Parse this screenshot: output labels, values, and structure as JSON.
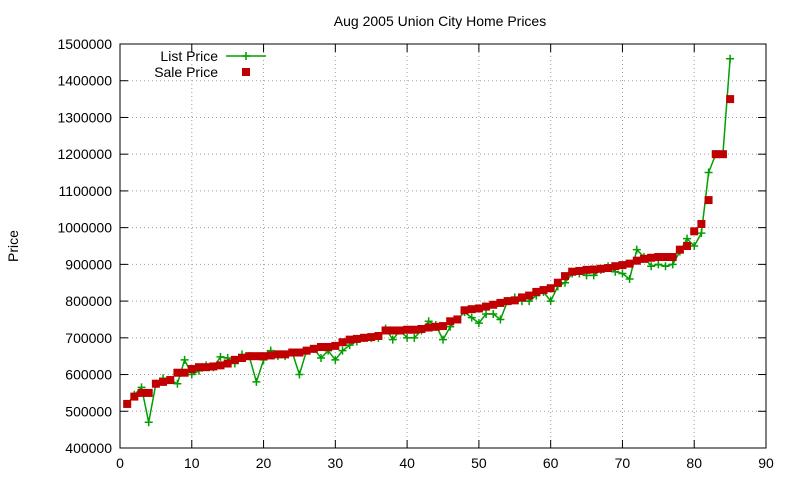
{
  "chart_data": {
    "type": "line",
    "title": "Aug 2005 Union City Home Prices",
    "xlabel": "",
    "ylabel": "Price",
    "xlim": [
      0,
      90
    ],
    "ylim": [
      400000,
      1500000
    ],
    "x_ticks": [
      0,
      10,
      20,
      30,
      40,
      50,
      60,
      70,
      80,
      90
    ],
    "y_ticks": [
      400000,
      500000,
      600000,
      700000,
      800000,
      900000,
      1000000,
      1100000,
      1200000,
      1300000,
      1400000,
      1500000
    ],
    "grid": true,
    "legend_position": "top-left",
    "x": [
      1,
      2,
      3,
      4,
      5,
      6,
      7,
      8,
      9,
      10,
      11,
      12,
      13,
      14,
      15,
      16,
      17,
      18,
      19,
      20,
      21,
      22,
      23,
      24,
      25,
      26,
      27,
      28,
      29,
      30,
      31,
      32,
      33,
      34,
      35,
      36,
      37,
      38,
      39,
      40,
      41,
      42,
      43,
      44,
      45,
      46,
      47,
      48,
      49,
      50,
      51,
      52,
      53,
      54,
      55,
      56,
      57,
      58,
      59,
      60,
      61,
      62,
      63,
      64,
      65,
      66,
      67,
      68,
      69,
      70,
      71,
      72,
      73,
      74,
      75,
      76,
      77,
      78,
      79,
      80,
      81,
      82,
      83,
      84,
      85
    ],
    "series": [
      {
        "name": "List Price",
        "style": "linespoints",
        "color": "#00a000",
        "values": [
          520000,
          545000,
          565000,
          470000,
          575000,
          590000,
          585000,
          575000,
          640000,
          600000,
          610000,
          625000,
          620000,
          648000,
          645000,
          630000,
          655000,
          650000,
          580000,
          640000,
          665000,
          650000,
          650000,
          660000,
          600000,
          665000,
          670000,
          645000,
          665000,
          640000,
          665000,
          680000,
          690000,
          700000,
          700000,
          700000,
          725000,
          695000,
          720000,
          700000,
          700000,
          720000,
          745000,
          735000,
          695000,
          730000,
          750000,
          770000,
          755000,
          740000,
          765000,
          765000,
          750000,
          800000,
          810000,
          800000,
          800000,
          815000,
          825000,
          800000,
          840000,
          850000,
          875000,
          875000,
          870000,
          870000,
          885000,
          895000,
          880000,
          875000,
          860000,
          940000,
          920000,
          895000,
          900000,
          895000,
          900000,
          935000,
          970000,
          950000,
          985000,
          1150000,
          1200000,
          1200000,
          1460000
        ]
      },
      {
        "name": "Sale Price",
        "style": "points",
        "color": "#c00000",
        "values": [
          520000,
          540000,
          550000,
          550000,
          575000,
          580000,
          585000,
          605000,
          605000,
          615000,
          620000,
          620000,
          622000,
          625000,
          630000,
          640000,
          645000,
          650000,
          650000,
          650000,
          652000,
          655000,
          655000,
          660000,
          660000,
          665000,
          670000,
          675000,
          675000,
          678000,
          688000,
          695000,
          697000,
          700000,
          702000,
          705000,
          720000,
          720000,
          720000,
          722000,
          722000,
          724000,
          728000,
          730000,
          732000,
          745000,
          750000,
          775000,
          778000,
          780000,
          785000,
          790000,
          795000,
          800000,
          802000,
          810000,
          815000,
          825000,
          830000,
          835000,
          850000,
          868000,
          880000,
          882000,
          885000,
          886000,
          888000,
          890000,
          895000,
          898000,
          902000,
          910000,
          915000,
          918000,
          920000,
          920000,
          920000,
          940000,
          950000,
          990000,
          1010000,
          1075000,
          1200000,
          1200000,
          1350000
        ]
      }
    ]
  }
}
